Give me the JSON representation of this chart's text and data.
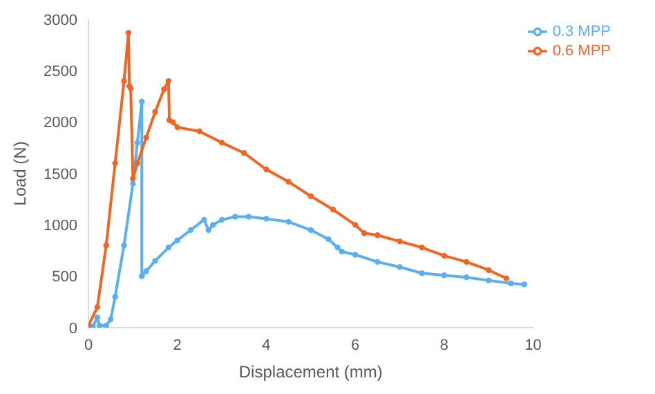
{
  "chart_data": {
    "type": "line",
    "xlabel": "Displacement (mm)",
    "ylabel": "Load (N)",
    "xlim": [
      0,
      10
    ],
    "xticks": [
      0,
      2,
      4,
      6,
      8,
      10
    ],
    "ylim": [
      0,
      3000
    ],
    "yticks": [
      0,
      500,
      1000,
      1500,
      2000,
      2500,
      3000
    ],
    "grid": false,
    "legend": "top right",
    "marker": "circle",
    "line_style": "solid",
    "series": [
      {
        "name": "0.3 MPP",
        "color": "#5aaff0",
        "x": [
          0.1,
          0.2,
          0.25,
          0.4,
          0.5,
          0.6,
          0.8,
          1.0,
          1.1,
          1.2,
          1.2,
          1.3,
          1.5,
          1.8,
          2.0,
          2.3,
          2.6,
          2.7,
          2.8,
          3.0,
          3.3,
          3.6,
          4.0,
          4.5,
          5.0,
          5.4,
          5.6,
          5.7,
          6.0,
          6.5,
          7.0,
          7.5,
          8.0,
          8.5,
          9.0,
          9.5,
          9.8
        ],
        "values": [
          10,
          100,
          20,
          20,
          80,
          300,
          800,
          1400,
          1800,
          2200,
          500,
          550,
          650,
          780,
          850,
          950,
          1050,
          950,
          1000,
          1050,
          1080,
          1080,
          1060,
          1030,
          950,
          860,
          780,
          740,
          710,
          640,
          590,
          530,
          510,
          490,
          460,
          430,
          420
        ]
      },
      {
        "name": "0.6 MPP",
        "color": "#f26522",
        "x": [
          0,
          0.2,
          0.4,
          0.6,
          0.8,
          0.9,
          0.92,
          0.95,
          1.0,
          1.1,
          1.3,
          1.5,
          1.7,
          1.8,
          1.82,
          1.9,
          2.0,
          2.5,
          3.0,
          3.5,
          4.0,
          4.5,
          5.0,
          5.5,
          6.0,
          6.2,
          6.5,
          7.0,
          7.5,
          8.0,
          8.5,
          9.0,
          9.4
        ],
        "values": [
          20,
          200,
          800,
          1600,
          2400,
          2870,
          2350,
          2330,
          1450,
          1600,
          1850,
          2100,
          2320,
          2400,
          2020,
          2000,
          1950,
          1910,
          1800,
          1700,
          1540,
          1420,
          1280,
          1150,
          1000,
          920,
          900,
          840,
          780,
          700,
          640,
          560,
          480
        ]
      }
    ]
  }
}
